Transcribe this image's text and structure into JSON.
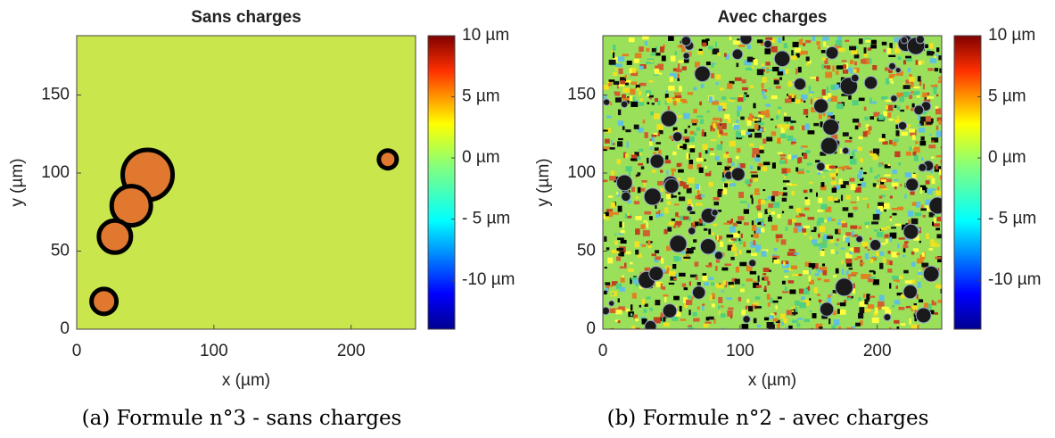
{
  "chart_data": [
    {
      "type": "heatmap",
      "title": "Sans charges",
      "x_label": "x (µm)",
      "y_label": "y (µm)",
      "xlim": [
        0,
        247
      ],
      "ylim": [
        0,
        188
      ],
      "xticks": [
        0,
        100,
        200
      ],
      "yticks": [
        0,
        50,
        100,
        150
      ],
      "clim": [
        -14,
        10
      ],
      "colorbar_ticks": [
        {
          "value": 10,
          "label": "10 µm"
        },
        {
          "value": 5,
          "label": "5 µm"
        },
        {
          "value": 0,
          "label": "0 µm"
        },
        {
          "value": -5,
          "label": "- 5 µm"
        },
        {
          "value": -10,
          "label": "-10 µm"
        }
      ],
      "caption": "(a) Formule n°3 - sans charges"
    },
    {
      "type": "heatmap",
      "title": "Avec charges",
      "x_label": "x (µm)",
      "y_label": "y (µm)",
      "xlim": [
        0,
        247
      ],
      "ylim": [
        0,
        188
      ],
      "xticks": [
        0,
        100,
        200
      ],
      "yticks": [
        0,
        50,
        100,
        150
      ],
      "clim": [
        -14,
        10
      ],
      "colorbar_ticks": [
        {
          "value": 10,
          "label": "10 µm"
        },
        {
          "value": 5,
          "label": "5 µm"
        },
        {
          "value": 0,
          "label": "0 µm"
        },
        {
          "value": -5,
          "label": "- 5 µm"
        },
        {
          "value": -10,
          "label": "-10 µm"
        }
      ],
      "caption": "(b) Formule n°2 - avec charges"
    }
  ]
}
